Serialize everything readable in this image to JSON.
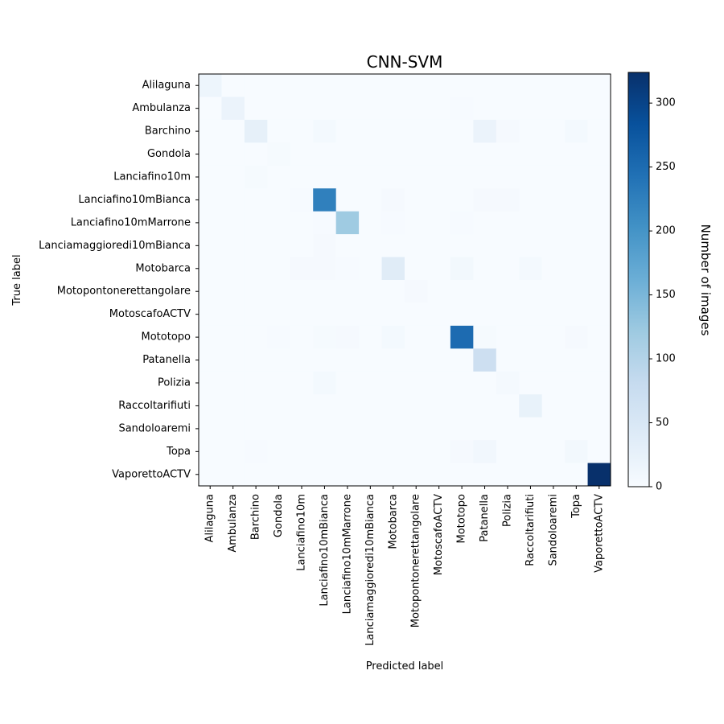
{
  "chart_data": {
    "type": "heatmap",
    "title": "CNN-SVM",
    "xlabel": "Predicted label",
    "ylabel": "True label",
    "colorbar_label": "Number of images",
    "colormap": "Blues",
    "value_range": [
      0,
      324
    ],
    "colorbar_ticks": [
      0,
      50,
      100,
      150,
      200,
      250,
      300
    ],
    "categories": [
      "Alilaguna",
      "Ambulanza",
      "Barchino",
      "Gondola",
      "Lanciafino10m",
      "Lanciafino10mBianca",
      "Lanciafino10mMarrone",
      "Lanciamaggioredi10mBianca",
      "Motobarca",
      "Motopontonerettangolare",
      "MotoscafoACTV",
      "Mototopo",
      "Patanella",
      "Polizia",
      "Raccoltarifiuti",
      "Sandoloaremi",
      "Topa",
      "VaporettoACTV"
    ],
    "matrix": [
      [
        16,
        0,
        0,
        0,
        0,
        0,
        0,
        0,
        0,
        0,
        0,
        0,
        0,
        0,
        0,
        0,
        0,
        0
      ],
      [
        0,
        20,
        0,
        0,
        0,
        0,
        0,
        0,
        0,
        0,
        0,
        2,
        0,
        0,
        0,
        0,
        0,
        0
      ],
      [
        0,
        0,
        28,
        0,
        0,
        6,
        0,
        0,
        0,
        0,
        0,
        0,
        20,
        4,
        0,
        0,
        6,
        0
      ],
      [
        0,
        0,
        0,
        3,
        0,
        0,
        0,
        0,
        0,
        0,
        0,
        0,
        0,
        0,
        0,
        0,
        0,
        0
      ],
      [
        0,
        0,
        3,
        0,
        0,
        0,
        0,
        0,
        0,
        0,
        0,
        0,
        0,
        0,
        0,
        0,
        0,
        0
      ],
      [
        0,
        0,
        0,
        0,
        2,
        225,
        0,
        0,
        4,
        0,
        0,
        0,
        4,
        4,
        0,
        0,
        0,
        0
      ],
      [
        0,
        0,
        0,
        0,
        0,
        2,
        120,
        0,
        2,
        0,
        0,
        2,
        0,
        0,
        0,
        0,
        0,
        0
      ],
      [
        0,
        0,
        0,
        0,
        0,
        4,
        0,
        0,
        0,
        0,
        0,
        0,
        0,
        0,
        0,
        0,
        0,
        0
      ],
      [
        0,
        0,
        0,
        0,
        4,
        4,
        2,
        0,
        38,
        0,
        0,
        8,
        0,
        0,
        6,
        0,
        0,
        0
      ],
      [
        0,
        0,
        0,
        0,
        0,
        0,
        0,
        0,
        0,
        4,
        0,
        0,
        0,
        0,
        0,
        0,
        0,
        0
      ],
      [
        0,
        0,
        0,
        0,
        0,
        0,
        0,
        0,
        0,
        0,
        0,
        0,
        0,
        0,
        0,
        0,
        0,
        0
      ],
      [
        0,
        0,
        0,
        2,
        0,
        3,
        4,
        0,
        6,
        0,
        0,
        250,
        3,
        0,
        0,
        0,
        4,
        0
      ],
      [
        0,
        0,
        0,
        0,
        0,
        0,
        0,
        0,
        0,
        0,
        0,
        0,
        70,
        0,
        0,
        0,
        0,
        0
      ],
      [
        0,
        0,
        0,
        0,
        0,
        6,
        0,
        0,
        0,
        0,
        0,
        0,
        0,
        5,
        0,
        0,
        0,
        0
      ],
      [
        0,
        0,
        0,
        0,
        0,
        0,
        0,
        0,
        0,
        0,
        0,
        0,
        0,
        0,
        24,
        0,
        0,
        0
      ],
      [
        0,
        0,
        0,
        0,
        0,
        0,
        0,
        0,
        0,
        0,
        0,
        0,
        0,
        0,
        0,
        0,
        0,
        0
      ],
      [
        0,
        0,
        2,
        0,
        0,
        0,
        0,
        0,
        0,
        0,
        0,
        4,
        10,
        0,
        0,
        0,
        8,
        0
      ],
      [
        0,
        0,
        0,
        0,
        0,
        0,
        0,
        0,
        0,
        0,
        0,
        0,
        0,
        0,
        0,
        0,
        0,
        324
      ]
    ]
  }
}
